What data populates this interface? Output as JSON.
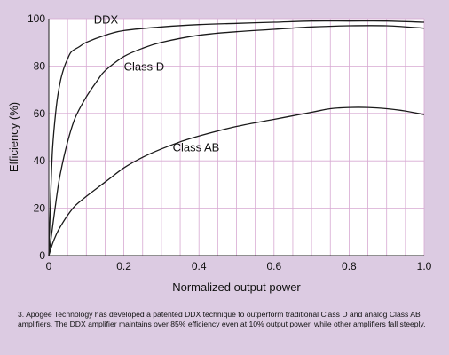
{
  "chart_data": {
    "type": "line",
    "title": "",
    "xlabel": "Normalized output power",
    "ylabel": "Efficiency (%)",
    "xlim": [
      0,
      1.0
    ],
    "ylim": [
      0,
      100
    ],
    "x_ticks": [
      "0",
      "0.2",
      "0.4",
      "0.6",
      "0.8",
      "1.0"
    ],
    "y_ticks": [
      "0",
      "20",
      "40",
      "60",
      "80",
      "100"
    ],
    "grid": true,
    "series": [
      {
        "name": "DDX",
        "x": [
          0,
          0.005,
          0.01,
          0.02,
          0.03,
          0.04,
          0.05,
          0.06,
          0.08,
          0.1,
          0.15,
          0.2,
          0.3,
          0.4,
          0.5,
          0.6,
          0.7,
          0.8,
          0.9,
          1.0
        ],
        "y": [
          0,
          25,
          45,
          63,
          73,
          79,
          83,
          86,
          88,
          90,
          93,
          95,
          96.5,
          97.5,
          98,
          98.5,
          99,
          99,
          99,
          98.5
        ]
      },
      {
        "name": "Class D",
        "x": [
          0,
          0.01,
          0.02,
          0.03,
          0.05,
          0.07,
          0.1,
          0.13,
          0.15,
          0.2,
          0.25,
          0.3,
          0.4,
          0.5,
          0.6,
          0.7,
          0.8,
          0.9,
          1.0
        ],
        "y": [
          0,
          12,
          24,
          34,
          48,
          58,
          67,
          74,
          78,
          84,
          87.5,
          90,
          93,
          94.5,
          95.5,
          96.5,
          97,
          97,
          96
        ]
      },
      {
        "name": "Class AB",
        "x": [
          0,
          0.01,
          0.02,
          0.03,
          0.05,
          0.07,
          0.1,
          0.15,
          0.2,
          0.25,
          0.3,
          0.35,
          0.4,
          0.5,
          0.6,
          0.7,
          0.75,
          0.8,
          0.85,
          0.9,
          0.95,
          1.0
        ],
        "y": [
          0,
          5,
          9,
          12,
          17,
          21,
          25,
          31,
          37,
          41.5,
          45,
          48,
          50.5,
          54.5,
          57.5,
          60.5,
          62,
          62.5,
          62.5,
          62,
          61,
          59.5
        ]
      }
    ]
  },
  "caption": "3. Apogee Technology has developed a patented DDX technique to outperform traditional Class D and analog Class AB amplifiers. The DDX amplifier maintains over 85% efficiency even at 10% output power, while other amplifiers fall steeply.",
  "colors": {
    "background": "#dccbe2",
    "plot_background": "#ffffff",
    "grid": "#d7a9d2",
    "line": "#1a1a1a"
  }
}
